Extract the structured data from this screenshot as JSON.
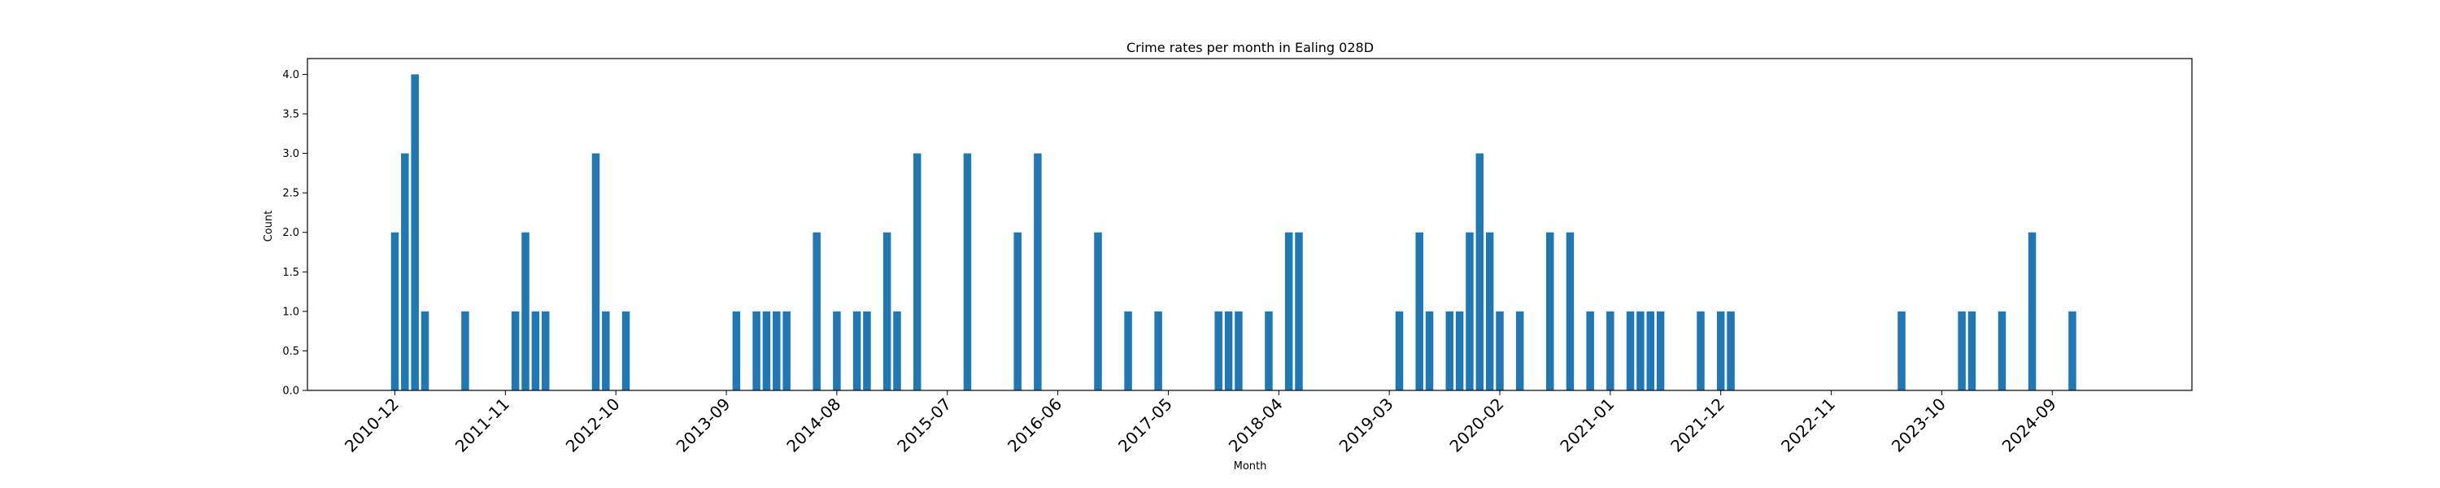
{
  "chart_data": {
    "type": "bar",
    "title": "Crime rates per month in Ealing 028D",
    "xlabel": "Month",
    "ylabel": "Count",
    "ylim": [
      0,
      4.2
    ],
    "yticks": [
      0.0,
      0.5,
      1.0,
      1.5,
      2.0,
      2.5,
      3.0,
      3.5,
      4.0
    ],
    "ytick_labels": [
      "0.0",
      "0.5",
      "1.0",
      "1.5",
      "2.0",
      "2.5",
      "3.0",
      "3.5",
      "4.0"
    ],
    "xticks": [
      "2010-12",
      "2011-11",
      "2012-10",
      "2013-09",
      "2014-08",
      "2015-07",
      "2016-06",
      "2017-05",
      "2018-04",
      "2019-03",
      "2020-02",
      "2021-01",
      "2021-12",
      "2022-11",
      "2023-10",
      "2024-09"
    ],
    "bar_color": "#1f77b4",
    "grid": false,
    "categories": [
      "2010-12",
      "2011-01",
      "2011-02",
      "2011-03",
      "2011-07",
      "2011-12",
      "2012-01",
      "2012-02",
      "2012-03",
      "2012-08",
      "2012-09",
      "2012-11",
      "2013-10",
      "2013-12",
      "2014-01",
      "2014-02",
      "2014-03",
      "2014-06",
      "2014-08",
      "2014-10",
      "2014-11",
      "2015-01",
      "2015-02",
      "2015-04",
      "2015-09",
      "2016-02",
      "2016-04",
      "2016-10",
      "2017-01",
      "2017-04",
      "2017-10",
      "2017-11",
      "2017-12",
      "2018-03",
      "2018-05",
      "2018-06",
      "2019-04",
      "2019-06",
      "2019-07",
      "2019-09",
      "2019-10",
      "2019-11",
      "2019-12",
      "2020-01",
      "2020-02",
      "2020-04",
      "2020-07",
      "2020-09",
      "2020-11",
      "2021-01",
      "2021-03",
      "2021-04",
      "2021-05",
      "2021-06",
      "2021-10",
      "2021-12",
      "2022-01",
      "2023-06",
      "2023-12",
      "2024-01",
      "2024-04",
      "2024-07",
      "2024-11"
    ],
    "values": [
      2,
      3,
      4,
      1,
      1,
      1,
      2,
      1,
      1,
      3,
      1,
      1,
      1,
      1,
      1,
      1,
      1,
      2,
      1,
      1,
      1,
      2,
      1,
      3,
      3,
      2,
      3,
      2,
      1,
      1,
      1,
      1,
      1,
      1,
      2,
      2,
      1,
      2,
      1,
      1,
      1,
      2,
      3,
      2,
      1,
      1,
      2,
      2,
      1,
      1,
      1,
      1,
      1,
      1,
      1,
      1,
      1,
      1,
      1,
      1,
      1,
      2,
      1
    ]
  }
}
